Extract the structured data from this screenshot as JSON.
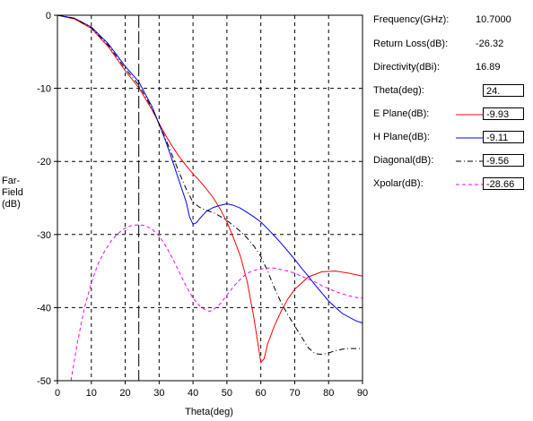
{
  "chart_data": {
    "type": "line",
    "xlabel": "Theta(deg)",
    "ylabel": [
      "Far-",
      "Field",
      "(dB)"
    ],
    "xlim": [
      0,
      90
    ],
    "ylim": [
      -50,
      0
    ],
    "xticks": [
      0,
      10,
      20,
      30,
      40,
      50,
      60,
      70,
      80,
      90
    ],
    "yticks": [
      0,
      -10,
      -20,
      -30,
      -40,
      -50
    ],
    "grid": true,
    "cursor_theta": 24,
    "series": [
      {
        "name": "E Plane",
        "color": "#ff0000",
        "style": "solid",
        "x": [
          0,
          5,
          10,
          15,
          20,
          24,
          28,
          30,
          32,
          34,
          36,
          38,
          40,
          42,
          44,
          46,
          48,
          50,
          52,
          54,
          56,
          58,
          60,
          61,
          62,
          64,
          66,
          68,
          70,
          74,
          78,
          82,
          86,
          90
        ],
        "y": [
          0,
          -0.5,
          -1.8,
          -4.3,
          -7.6,
          -9.93,
          -13.0,
          -14.8,
          -16.5,
          -18.0,
          -19.4,
          -20.6,
          -21.7,
          -22.7,
          -23.8,
          -25.0,
          -26.5,
          -28.3,
          -30.5,
          -33.0,
          -36.5,
          -41.5,
          -47.5,
          -47.0,
          -45.0,
          -42.5,
          -40.5,
          -38.8,
          -37.5,
          -35.8,
          -35.1,
          -35.0,
          -35.3,
          -35.7
        ]
      },
      {
        "name": "H Plane",
        "color": "#0000ff",
        "style": "solid",
        "x": [
          0,
          5,
          10,
          15,
          20,
          24,
          28,
          30,
          32,
          34,
          36,
          38,
          39,
          40,
          41,
          42,
          44,
          46,
          48,
          50,
          52,
          54,
          56,
          58,
          60,
          62,
          64,
          66,
          68,
          70,
          72,
          74,
          76,
          78,
          80,
          84,
          88,
          90
        ],
        "y": [
          0,
          -0.4,
          -1.6,
          -3.9,
          -7.0,
          -9.11,
          -12.6,
          -14.9,
          -17.3,
          -20.0,
          -22.8,
          -25.6,
          -27.6,
          -28.6,
          -28.4,
          -27.8,
          -26.8,
          -26.3,
          -26.0,
          -25.8,
          -26.0,
          -26.4,
          -27.0,
          -27.6,
          -28.3,
          -29.2,
          -30.2,
          -31.2,
          -32.3,
          -33.4,
          -34.6,
          -35.7,
          -36.9,
          -38.0,
          -39.1,
          -40.8,
          -41.8,
          -42.1
        ]
      },
      {
        "name": "Diagonal",
        "color": "#000000",
        "style": "dashdot",
        "x": [
          0,
          5,
          10,
          15,
          20,
          24,
          28,
          30,
          32,
          34,
          36,
          38,
          40,
          42,
          44,
          46,
          48,
          50,
          52,
          54,
          56,
          58,
          60,
          62,
          64,
          66,
          68,
          70,
          72,
          74,
          76,
          78,
          80,
          82,
          84,
          86,
          88,
          90
        ],
        "y": [
          0,
          -0.4,
          -1.7,
          -4.1,
          -7.3,
          -9.56,
          -12.8,
          -14.9,
          -17.0,
          -19.3,
          -21.6,
          -23.8,
          -25.6,
          -26.3,
          -26.7,
          -27.0,
          -27.5,
          -28.1,
          -28.8,
          -29.6,
          -30.5,
          -31.6,
          -33.0,
          -35.0,
          -37.3,
          -39.3,
          -41.0,
          -42.5,
          -44.0,
          -45.5,
          -46.3,
          -46.4,
          -46.2,
          -45.9,
          -45.7,
          -45.6,
          -45.6,
          -45.6
        ]
      },
      {
        "name": "Xpolar",
        "color": "#ff00ff",
        "style": "dashed",
        "x": [
          4,
          6,
          8,
          10,
          12,
          14,
          16,
          18,
          20,
          22,
          24,
          26,
          28,
          30,
          32,
          34,
          36,
          38,
          40,
          42,
          44,
          45,
          46,
          48,
          50,
          52,
          54,
          56,
          58,
          60,
          62,
          64,
          66,
          68,
          70,
          72,
          74,
          76,
          78,
          80,
          82,
          84,
          86,
          88,
          90
        ],
        "y": [
          -50,
          -44.5,
          -40.0,
          -36.6,
          -34.0,
          -32.2,
          -30.8,
          -29.8,
          -29.1,
          -28.75,
          -28.66,
          -28.8,
          -29.3,
          -30.2,
          -31.6,
          -33.3,
          -35.2,
          -37.1,
          -38.7,
          -39.8,
          -40.4,
          -40.5,
          -40.3,
          -39.5,
          -38.3,
          -37.1,
          -36.1,
          -35.3,
          -34.9,
          -34.7,
          -34.6,
          -34.6,
          -34.8,
          -35.0,
          -35.3,
          -35.7,
          -36.1,
          -36.5,
          -37.0,
          -37.4,
          -37.8,
          -38.1,
          -38.4,
          -38.6,
          -38.7
        ]
      }
    ]
  },
  "info": {
    "frequency": {
      "label": "Frequency(GHz):",
      "value": "10.7000"
    },
    "return_loss": {
      "label": "Return Loss(dB):",
      "value": "-26.32"
    },
    "directivity": {
      "label": "Directivity(dBi):",
      "value": "16.89"
    },
    "theta": {
      "label": "Theta(deg):",
      "value": "24."
    },
    "e_plane": {
      "label": "E Plane(dB):",
      "value": "-9.93",
      "color": "#ff0000"
    },
    "h_plane": {
      "label": "H Plane(dB):",
      "value": "-9.11",
      "color": "#0000ff"
    },
    "diagonal": {
      "label": "Diagonal(dB):",
      "value": "-9.56",
      "color": "#000000"
    },
    "xpolar": {
      "label": "Xpolar(dB):",
      "value": "-28.66",
      "color": "#ff00ff"
    }
  }
}
